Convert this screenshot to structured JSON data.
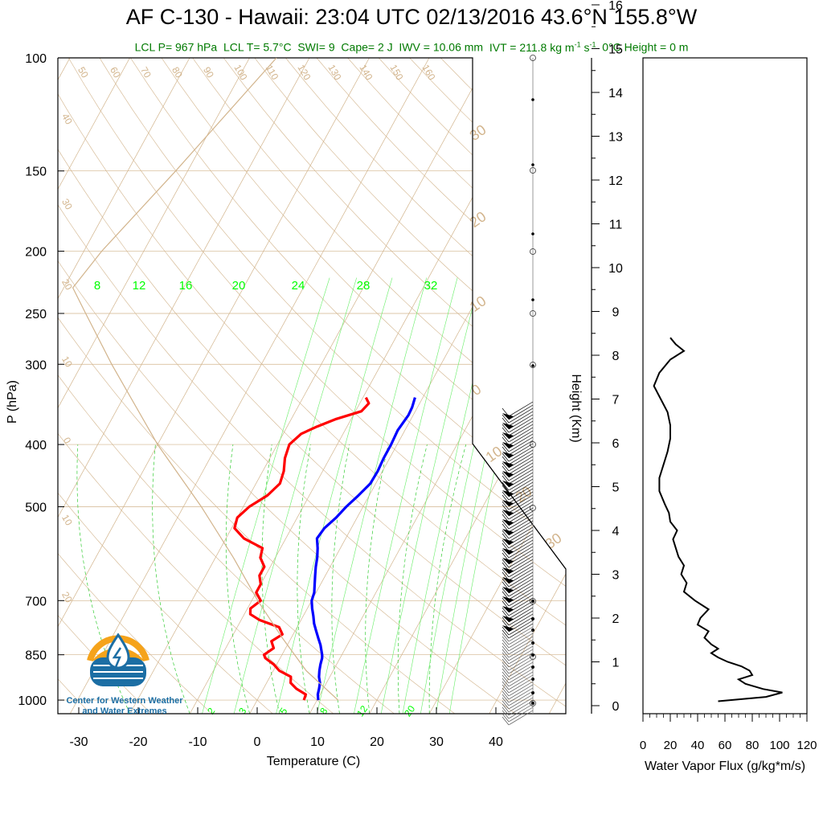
{
  "title": "AF C-130 - Hawaii: 23:04 UTC 02/13/2016  43.6°N 155.8°W",
  "subtitle": {
    "lcl_p": "LCL P= 967 hPa",
    "lcl_t": "LCL T= 5.7°C",
    "swi": "SWI= 9",
    "cape": "Cape= 2 J",
    "iwv": "IWV = 10.06 mm",
    "ivt": "IVT = 211.8 kg m",
    "ivt_unit_tail": "s",
    "zero_height": "0°C Height = 0 m"
  },
  "logo": {
    "line1": "Center for Western Weather",
    "line2": "and Water Extremes",
    "icon": "cw3e-water-drop-logo"
  },
  "colors": {
    "temperature": "#ff0000",
    "dewpoint": "#0000ff",
    "background_lines": "#d2b48c",
    "mixing_ratio": "#00ff00",
    "subtitle": "#007a00",
    "logo": "#1c6ea4"
  },
  "chart_data": [
    {
      "type": "line",
      "kind": "skew-T log-P sounding",
      "xlabel": "Temperature (C)",
      "ylabel": "P (hPa)",
      "y_scale": "log",
      "x_ticks": [
        -30,
        -20,
        -10,
        0,
        10,
        20,
        30,
        40
      ],
      "y_ticks": [
        100,
        150,
        200,
        250,
        300,
        400,
        500,
        700,
        850,
        1000
      ],
      "height_axis_label": "Height (Km)",
      "height_ticks": [
        0,
        1,
        2,
        3,
        4,
        5,
        6,
        7,
        8,
        9,
        10,
        11,
        12,
        13,
        14,
        15,
        16
      ],
      "mixing_ratio_labels_top": [
        "8",
        "12",
        "16",
        "20",
        "24",
        "28",
        "32"
      ],
      "mixing_ratio_labels_bottom": [
        "2",
        "3",
        "5",
        "8",
        "12",
        "20"
      ],
      "dry_adiabat_labels": [
        "50",
        "60",
        "70",
        "80",
        "90",
        "100",
        "110",
        "120",
        "130",
        "140",
        "150",
        "160",
        "40",
        "30",
        "20",
        "10",
        "0",
        "10",
        "20"
      ],
      "moist_adiabat_labels": [
        "30",
        "20",
        "10",
        "0",
        "10",
        "20",
        "30"
      ],
      "series": [
        {
          "name": "Temperature",
          "color": "#ff0000",
          "points": [
            [
              1000,
              7.8
            ],
            [
              980,
              7.6
            ],
            [
              960,
              5.5
            ],
            [
              940,
              4.0
            ],
            [
              920,
              3.5
            ],
            [
              900,
              1.0
            ],
            [
              880,
              -0.5
            ],
            [
              860,
              -2.5
            ],
            [
              850,
              -3.0
            ],
            [
              830,
              -2.0
            ],
            [
              810,
              -3.0
            ],
            [
              790,
              -1.8
            ],
            [
              770,
              -3.0
            ],
            [
              750,
              -7.0
            ],
            [
              735,
              -9.0
            ],
            [
              720,
              -9.5
            ],
            [
              700,
              -8.5
            ],
            [
              680,
              -10.0
            ],
            [
              660,
              -10.0
            ],
            [
              640,
              -11.0
            ],
            [
              620,
              -11.0
            ],
            [
              600,
              -12.5
            ],
            [
              580,
              -13.0
            ],
            [
              560,
              -17.0
            ],
            [
              540,
              -19.5
            ],
            [
              520,
              -20.0
            ],
            [
              500,
              -19.0
            ],
            [
              480,
              -17.0
            ],
            [
              460,
              -16.0
            ],
            [
              440,
              -16.5
            ],
            [
              420,
              -17.5
            ],
            [
              400,
              -18.0
            ],
            [
              385,
              -17.0
            ],
            [
              375,
              -15.0
            ],
            [
              365,
              -12.5
            ],
            [
              355,
              -9.0
            ],
            [
              345,
              -8.5
            ],
            [
              338,
              -9.5
            ]
          ]
        },
        {
          "name": "Dewpoint",
          "color": "#0000ff",
          "points": [
            [
              1000,
              10.2
            ],
            [
              980,
              9.6
            ],
            [
              960,
              9.3
            ],
            [
              940,
              8.9
            ],
            [
              920,
              8.2
            ],
            [
              900,
              7.7
            ],
            [
              880,
              7.3
            ],
            [
              860,
              7.0
            ],
            [
              850,
              6.7
            ],
            [
              820,
              5.5
            ],
            [
              800,
              4.5
            ],
            [
              780,
              3.5
            ],
            [
              760,
              2.5
            ],
            [
              740,
              1.7
            ],
            [
              720,
              0.8
            ],
            [
              700,
              0.0
            ],
            [
              680,
              -0.3
            ],
            [
              660,
              -1.0
            ],
            [
              640,
              -1.7
            ],
            [
              620,
              -2.4
            ],
            [
              600,
              -3.0
            ],
            [
              580,
              -3.8
            ],
            [
              560,
              -4.8
            ],
            [
              540,
              -4.5
            ],
            [
              520,
              -3.5
            ],
            [
              500,
              -2.8
            ],
            [
              480,
              -1.8
            ],
            [
              460,
              -0.9
            ],
            [
              440,
              -0.8
            ],
            [
              420,
              -1.0
            ],
            [
              400,
              -1.0
            ],
            [
              380,
              -1.2
            ],
            [
              360,
              -0.8
            ],
            [
              350,
              -0.9
            ],
            [
              338,
              -1.3
            ]
          ]
        },
        {
          "name": "Parcel",
          "color": "#d2b48c",
          "points": [
            [
              1000,
              13.5
            ],
            [
              900,
              5.5
            ],
            [
              800,
              -1.5
            ],
            [
              700,
              -9.0
            ],
            [
              600,
              -17.0
            ],
            [
              500,
              -27.0
            ],
            [
              400,
              -40.0
            ],
            [
              300,
              -55.0
            ],
            [
              250,
              -64.0
            ],
            [
              228,
              -68.5
            ],
            [
              200,
              -67.0
            ],
            [
              150,
              -62.0
            ],
            [
              100,
              -55.5
            ]
          ]
        }
      ]
    },
    {
      "type": "line",
      "xlabel": "Water Vapor Flux (g/kg*m/s)",
      "ylabel": "",
      "xlim": [
        0,
        120
      ],
      "x_ticks": [
        0,
        20,
        40,
        60,
        80,
        100,
        120
      ],
      "y_units": "km",
      "series": [
        {
          "name": "Water Vapor Flux",
          "points": [
            [
              0.1,
              55
            ],
            [
              0.2,
              90
            ],
            [
              0.3,
              102
            ],
            [
              0.38,
              88
            ],
            [
              0.5,
              75
            ],
            [
              0.6,
              70
            ],
            [
              0.7,
              80
            ],
            [
              0.8,
              78
            ],
            [
              0.9,
              72
            ],
            [
              1.0,
              62
            ],
            [
              1.1,
              55
            ],
            [
              1.2,
              50
            ],
            [
              1.3,
              55
            ],
            [
              1.4,
              50
            ],
            [
              1.55,
              45
            ],
            [
              1.7,
              48
            ],
            [
              1.85,
              40
            ],
            [
              2.0,
              42
            ],
            [
              2.2,
              48
            ],
            [
              2.4,
              38
            ],
            [
              2.6,
              30
            ],
            [
              2.8,
              32
            ],
            [
              3.0,
              28
            ],
            [
              3.2,
              30
            ],
            [
              3.4,
              26
            ],
            [
              3.6,
              24
            ],
            [
              3.8,
              22
            ],
            [
              4.0,
              25
            ],
            [
              4.2,
              20
            ],
            [
              4.4,
              19
            ],
            [
              4.6,
              16
            ],
            [
              4.9,
              12
            ],
            [
              5.2,
              12
            ],
            [
              5.5,
              15
            ],
            [
              5.8,
              18
            ],
            [
              6.1,
              20
            ],
            [
              6.4,
              20
            ],
            [
              6.7,
              18
            ],
            [
              7.0,
              13
            ],
            [
              7.3,
              8
            ],
            [
              7.6,
              12
            ],
            [
              7.9,
              20
            ],
            [
              8.1,
              30
            ],
            [
              8.25,
              24
            ],
            [
              8.4,
              20
            ]
          ]
        }
      ]
    }
  ]
}
